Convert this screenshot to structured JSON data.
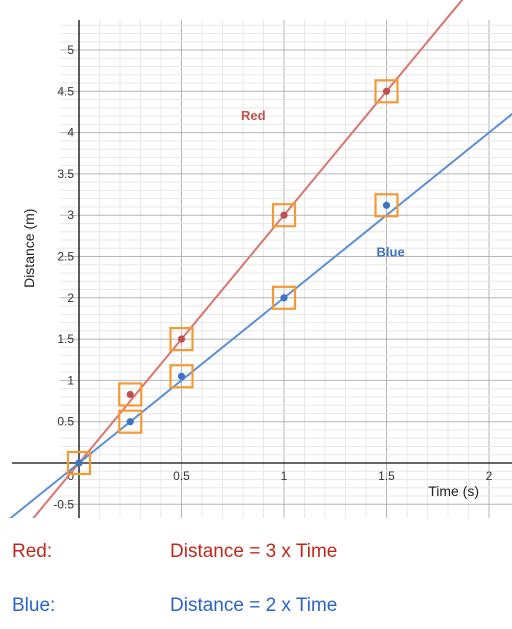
{
  "chart_data": {
    "type": "scatter",
    "xlabel": "Time (s)",
    "ylabel": "Distance (m)",
    "xlim": [
      -0.5,
      2.05
    ],
    "ylim": [
      -0.55,
      5.3
    ],
    "x_ticks": [
      0.5,
      1,
      1.5,
      2
    ],
    "y_ticks": [
      -0.5,
      0.5,
      1,
      1.5,
      2,
      2.5,
      3,
      3.5,
      4,
      4.5,
      5
    ],
    "x_tick_labels": [
      "0.5",
      "1",
      "1.5",
      "2"
    ],
    "y_tick_labels": [
      "-0.5",
      "0.5",
      "1",
      "1.5",
      "2",
      "2.5",
      "3",
      "3.5",
      "4",
      "4.5",
      "5"
    ],
    "origin_label": "0",
    "grid": true,
    "series": [
      {
        "name": "Red",
        "color": "#c0504d",
        "line_color": "#d9756d",
        "slope": 3,
        "points": [
          [
            0,
            0
          ],
          [
            0.25,
            0.83
          ],
          [
            0.5,
            1.5
          ],
          [
            1,
            3
          ],
          [
            1.5,
            4.5
          ]
        ],
        "highlighted": [
          [
            0,
            0
          ],
          [
            0.25,
            0.83
          ],
          [
            0.5,
            1.5
          ],
          [
            1,
            3
          ],
          [
            1.5,
            4.5
          ]
        ],
        "label_at": [
          0.85,
          4.15
        ]
      },
      {
        "name": "Blue",
        "color": "#3d74c1",
        "line_color": "#5b8fd6",
        "slope": 2,
        "points": [
          [
            0,
            0
          ],
          [
            0.25,
            0.5
          ],
          [
            0.5,
            1.05
          ],
          [
            1,
            2
          ],
          [
            1.5,
            3.12
          ]
        ],
        "highlighted": [
          [
            0.25,
            0.5
          ],
          [
            0.5,
            1.05
          ],
          [
            1,
            2
          ],
          [
            1.5,
            3.12
          ]
        ],
        "label_at": [
          1.52,
          2.5
        ]
      }
    ],
    "highlight_color": "#f39a36"
  },
  "equations": [
    {
      "label": "Red:",
      "text": "Distance = 3 x Time",
      "color": "#c0281c"
    },
    {
      "label": "Blue:",
      "text": "Distance = 2 x Time",
      "color": "#2a62c9"
    }
  ]
}
